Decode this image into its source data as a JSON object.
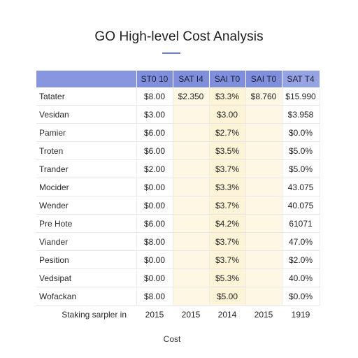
{
  "title": "GO High-level Cost Analysis",
  "columns": [
    "",
    "ST0 10",
    "SAT I4",
    "SAI T0",
    "SAI T0",
    "SAT T4"
  ],
  "rows": [
    {
      "label": "Tatater",
      "cells": [
        "$8.00",
        "$2.350",
        "$3.3%",
        "$8.760",
        "$15.990"
      ]
    },
    {
      "label": "Vesidan",
      "cells": [
        "$3.00",
        "",
        "$3.00",
        "",
        "$3.958"
      ]
    },
    {
      "label": "Pamier",
      "cells": [
        "$6.00",
        "",
        "$2.7%",
        "",
        "$0.0%"
      ]
    },
    {
      "label": "Troten",
      "cells": [
        "$6.00",
        "",
        "$3.5%",
        "",
        "$5.0%"
      ]
    },
    {
      "label": "Trander",
      "cells": [
        "$2.00",
        "",
        "$3.7%",
        "",
        "$5.0%"
      ]
    },
    {
      "label": "Mocider",
      "cells": [
        "$0.00",
        "",
        "$3.3%",
        "",
        "43.075"
      ]
    },
    {
      "label": "Wender",
      "cells": [
        "$0.00",
        "",
        "$3.7%",
        "",
        "40.075"
      ]
    },
    {
      "label": "Pre Hote",
      "cells": [
        "$6.00",
        "",
        "$4.2%",
        "",
        "61071"
      ]
    },
    {
      "label": "Viander",
      "cells": [
        "$8.00",
        "",
        "$3.7%",
        "",
        "47.0%"
      ]
    },
    {
      "label": "Pesition",
      "cells": [
        "$0.00",
        "",
        "$3.7%",
        "",
        "$2.0%"
      ]
    },
    {
      "label": "Vedsipat",
      "cells": [
        "$0.00",
        "",
        "$5.3%",
        "",
        "40.0%"
      ]
    },
    {
      "label": "Wofackan",
      "cells": [
        "$8.00",
        "",
        "$5.00",
        "",
        "$0.0%"
      ]
    }
  ],
  "footer": {
    "label": "Staking sarpler in",
    "cells": [
      "2015",
      "2015",
      "2014",
      "2015",
      "1919"
    ]
  },
  "caption": "Cost",
  "colors": {
    "header": "#7f8fdc",
    "accent_rule": "#6d7fd1",
    "highlight": "#fdf3d6"
  }
}
